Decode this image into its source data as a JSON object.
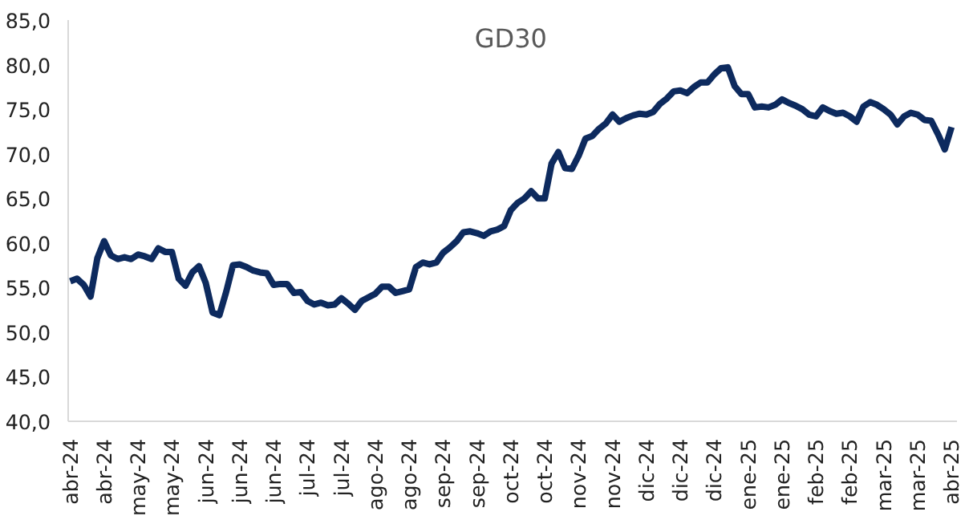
{
  "chart_data": {
    "type": "line",
    "title": "GD30",
    "categories": [
      "abr-24",
      null,
      null,
      null,
      null,
      "abr-24",
      null,
      null,
      null,
      null,
      "may-24",
      null,
      null,
      null,
      null,
      "may-24",
      null,
      null,
      null,
      null,
      "jun-24",
      null,
      null,
      null,
      null,
      "jun-24",
      null,
      null,
      null,
      null,
      "jun-24",
      null,
      null,
      null,
      null,
      "jul-24",
      null,
      null,
      null,
      null,
      "jul-24",
      null,
      null,
      null,
      null,
      "ago-24",
      null,
      null,
      null,
      null,
      "ago-24",
      null,
      null,
      null,
      null,
      "sep-24",
      null,
      null,
      null,
      null,
      "sep-24",
      null,
      null,
      null,
      null,
      "oct-24",
      null,
      null,
      null,
      null,
      "oct-24",
      null,
      null,
      null,
      null,
      "nov-24",
      null,
      null,
      null,
      null,
      "nov-24",
      null,
      null,
      null,
      null,
      "dic-24",
      null,
      null,
      null,
      null,
      "dic-24",
      null,
      null,
      null,
      null,
      "dic-24",
      null,
      null,
      null,
      null,
      "ene-25",
      null,
      null,
      null,
      null,
      "ene-25",
      null,
      null,
      null,
      null,
      "feb-25",
      null,
      null,
      null,
      null,
      "feb-25",
      null,
      null,
      null,
      null,
      "mar-25",
      null,
      null,
      null,
      null,
      "mar-25",
      null,
      null,
      null,
      null,
      "abr-25"
    ],
    "series": [
      {
        "color": "#0d2a5e",
        "values": [
          55.7,
          56.0,
          55.3,
          54.0,
          58.3,
          60.2,
          58.6,
          58.2,
          58.4,
          58.2,
          58.7,
          58.5,
          58.2,
          59.4,
          59.0,
          59.0,
          56.0,
          55.2,
          56.7,
          57.4,
          55.5,
          52.2,
          51.9,
          54.5,
          57.5,
          57.6,
          57.3,
          56.9,
          56.7,
          56.6,
          55.3,
          55.4,
          55.4,
          54.4,
          54.5,
          53.5,
          53.1,
          53.3,
          53.0,
          53.1,
          53.8,
          53.2,
          52.5,
          53.5,
          53.9,
          54.3,
          55.1,
          55.1,
          54.4,
          54.6,
          54.8,
          57.3,
          57.8,
          57.6,
          57.8,
          58.9,
          59.5,
          60.2,
          61.2,
          61.3,
          61.1,
          60.8,
          61.3,
          61.5,
          61.9,
          63.7,
          64.5,
          65.0,
          65.8,
          65.0,
          65.0,
          68.9,
          70.2,
          68.4,
          68.3,
          69.8,
          71.7,
          72.0,
          72.8,
          73.4,
          74.4,
          73.6,
          74.0,
          74.3,
          74.5,
          74.4,
          74.7,
          75.6,
          76.2,
          77.0,
          77.1,
          76.8,
          77.5,
          78.0,
          78.0,
          78.9,
          79.6,
          79.7,
          77.6,
          76.7,
          76.7,
          75.2,
          75.3,
          75.2,
          75.5,
          76.1,
          75.7,
          75.4,
          75.0,
          74.4,
          74.2,
          75.2,
          74.8,
          74.5,
          74.6,
          74.2,
          73.6,
          75.3,
          75.8,
          75.5,
          75.0,
          74.4,
          73.3,
          74.2,
          74.6,
          74.4,
          73.8,
          73.7,
          72.2,
          70.5,
          73.0
        ]
      }
    ],
    "ylim": [
      40,
      85
    ],
    "yticks": [
      {
        "value": 40,
        "label": "40,0"
      },
      {
        "value": 45,
        "label": "45,0"
      },
      {
        "value": 50,
        "label": "50,0"
      },
      {
        "value": 55,
        "label": "55,0"
      },
      {
        "value": 60,
        "label": "60,0"
      },
      {
        "value": 65,
        "label": "65,0"
      },
      {
        "value": 70,
        "label": "70,0"
      },
      {
        "value": 75,
        "label": "75,0"
      },
      {
        "value": 80,
        "label": "80,0"
      },
      {
        "value": 85,
        "label": "85,0"
      }
    ],
    "grid": false,
    "marker": "none",
    "line_style": "solid"
  }
}
